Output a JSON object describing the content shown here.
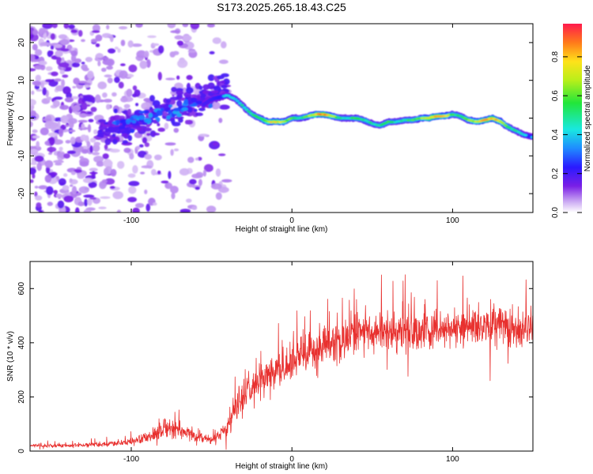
{
  "chart_data": [
    {
      "type": "heatmap",
      "title": "S173.2025.265.18.43.C25",
      "xlabel": "Height of straight line (km)",
      "ylabel": "Frequency (Hz)",
      "xlim": [
        -163,
        150
      ],
      "ylim": [
        -25,
        25
      ],
      "xticks": [
        -100,
        0,
        100
      ],
      "xtick_labels": [
        "-100",
        "0",
        "100"
      ],
      "yticks": [
        -20,
        -10,
        0,
        10,
        20
      ],
      "ytick_labels": [
        "-20",
        "-10",
        "0",
        "10",
        "20"
      ],
      "colorbar": {
        "label": "Normalized spectral amplitude",
        "range": [
          0,
          0.97
        ],
        "ticks": [
          0.0,
          0.2,
          0.4,
          0.6,
          0.8
        ],
        "tick_labels": [
          "0.0",
          "0.2",
          "0.4",
          "0.6",
          "0.8"
        ]
      },
      "ridge": {
        "x": [
          -60,
          -50,
          -40,
          -35,
          -30,
          -25,
          -20,
          -15,
          -10,
          -5,
          0,
          5,
          10,
          15,
          20,
          25,
          30,
          35,
          40,
          45,
          50,
          55,
          60,
          65,
          70,
          75,
          80,
          85,
          90,
          95,
          100,
          105,
          110,
          115,
          120,
          125,
          130,
          135,
          140,
          145,
          150
        ],
        "freq": [
          2,
          5,
          6,
          5,
          3,
          1,
          0,
          -1,
          -1,
          -1,
          0,
          0,
          0.5,
          1,
          1,
          0.5,
          0,
          0,
          0,
          -0.5,
          -1.5,
          -2,
          -1,
          -1,
          -0.5,
          -0.5,
          0,
          0,
          0.5,
          0.5,
          1,
          0.5,
          -0.5,
          -1,
          -0.5,
          0,
          -1,
          -2.5,
          -3.5,
          -4.5,
          -5
        ],
        "amplitude": [
          0.2,
          0.35,
          0.45,
          0.45,
          0.5,
          0.55,
          0.6,
          0.75,
          0.85,
          0.7,
          0.6,
          0.55,
          0.65,
          0.85,
          0.95,
          0.75,
          0.55,
          0.5,
          0.6,
          0.55,
          0.5,
          0.55,
          0.6,
          0.5,
          0.55,
          0.6,
          0.65,
          0.85,
          0.9,
          0.8,
          0.6,
          0.55,
          0.65,
          0.75,
          0.85,
          0.9,
          0.75,
          0.6,
          0.5,
          0.45,
          0.4
        ]
      }
    },
    {
      "type": "line",
      "xlabel": "Height of straight line (km)",
      "ylabel": "SNR (10 * v/v)",
      "xlim": [
        -163,
        150
      ],
      "ylim": [
        0,
        700
      ],
      "xticks": [
        -100,
        0,
        100
      ],
      "xtick_labels": [
        "-100",
        "0",
        "100"
      ],
      "yticks": [
        0,
        200,
        400,
        600
      ],
      "ytick_labels": [
        "0",
        "200",
        "400",
        "600"
      ],
      "color": "#e8312f",
      "envelope": {
        "x": [
          -163,
          -140,
          -120,
          -110,
          -100,
          -90,
          -80,
          -75,
          -70,
          -65,
          -60,
          -55,
          -50,
          -45,
          -40,
          -35,
          -30,
          -25,
          -20,
          -15,
          -10,
          -5,
          0,
          5,
          10,
          15,
          20,
          25,
          30,
          40,
          50,
          60,
          70,
          80,
          90,
          100,
          110,
          120,
          130,
          140,
          150
        ],
        "mean": [
          20,
          20,
          25,
          28,
          35,
          50,
          75,
          85,
          80,
          65,
          50,
          45,
          40,
          60,
          90,
          160,
          200,
          230,
          260,
          280,
          290,
          310,
          330,
          345,
          360,
          375,
          385,
          400,
          410,
          425,
          430,
          440,
          445,
          445,
          450,
          455,
          455,
          460,
          460,
          455,
          450
        ],
        "spread": [
          10,
          10,
          12,
          14,
          20,
          35,
          55,
          60,
          55,
          40,
          28,
          24,
          20,
          40,
          60,
          100,
          110,
          110,
          100,
          100,
          95,
          95,
          95,
          95,
          100,
          100,
          100,
          105,
          105,
          110,
          110,
          110,
          110,
          110,
          110,
          110,
          110,
          110,
          110,
          110,
          110
        ]
      }
    }
  ]
}
